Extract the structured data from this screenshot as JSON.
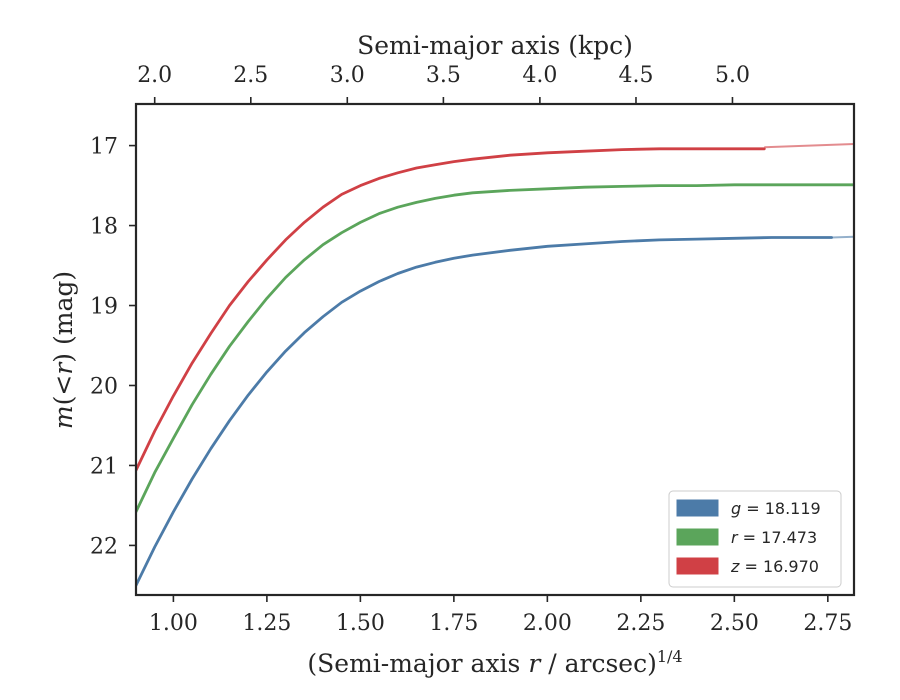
{
  "chart_data": {
    "type": "line",
    "xlabel_prefix": "(Semi-major axis ",
    "xlabel_var": "r",
    "xlabel_suffix": " / arcsec)",
    "xlabel_exp": "1/4",
    "ylabel_var": "m",
    "ylabel_mid": "(<",
    "ylabel_var2": "r",
    "ylabel_suffix": ") (mag)",
    "top_xlabel": "Semi-major axis (kpc)",
    "xlim": [
      0.9,
      2.82
    ],
    "ylim": [
      22.62,
      16.48
    ],
    "y_inverted": true,
    "x_ticks": [
      1.0,
      1.25,
      1.5,
      1.75,
      2.0,
      2.25,
      2.5,
      2.75
    ],
    "x_tick_labels": [
      "1.00",
      "1.25",
      "1.50",
      "1.75",
      "2.00",
      "2.25",
      "2.50",
      "2.75"
    ],
    "y_ticks": [
      17,
      18,
      19,
      20,
      21,
      22
    ],
    "y_tick_labels": [
      "17",
      "18",
      "19",
      "20",
      "21",
      "22"
    ],
    "top_ticks_kpc": [
      2.0,
      2.5,
      3.0,
      3.5,
      4.0,
      4.5,
      5.0
    ],
    "top_tick_labels": [
      "2.0",
      "2.5",
      "3.0",
      "3.5",
      "4.0",
      "4.5",
      "5.0"
    ],
    "top_tick_positions_x": [
      0.95,
      1.207,
      1.465,
      1.722,
      1.98,
      2.237,
      2.495
    ],
    "legend_position": "lower right",
    "series": [
      {
        "band": "g",
        "label_value": "18.119",
        "color": "#4c7ba8",
        "x": [
          0.9,
          0.95,
          1.0,
          1.05,
          1.1,
          1.15,
          1.2,
          1.25,
          1.3,
          1.35,
          1.4,
          1.45,
          1.5,
          1.55,
          1.6,
          1.65,
          1.7,
          1.75,
          1.8,
          1.9,
          2.0,
          2.1,
          2.2,
          2.3,
          2.4,
          2.5,
          2.6,
          2.7,
          2.76
        ],
        "y": [
          22.5,
          22.02,
          21.58,
          21.17,
          20.79,
          20.44,
          20.12,
          19.83,
          19.57,
          19.34,
          19.14,
          18.96,
          18.82,
          18.7,
          18.6,
          18.52,
          18.46,
          18.41,
          18.37,
          18.31,
          18.26,
          18.23,
          18.2,
          18.18,
          18.17,
          18.16,
          18.15,
          18.15,
          18.15
        ],
        "outer_x": [
          2.76,
          2.82
        ],
        "outer_y": [
          18.15,
          18.14
        ]
      },
      {
        "band": "r",
        "label_value": "17.473",
        "color": "#5ba55b",
        "x": [
          0.9,
          0.95,
          1.0,
          1.05,
          1.1,
          1.15,
          1.2,
          1.25,
          1.3,
          1.35,
          1.4,
          1.45,
          1.5,
          1.55,
          1.6,
          1.65,
          1.7,
          1.75,
          1.8,
          1.9,
          2.0,
          2.1,
          2.2,
          2.3,
          2.4,
          2.5,
          2.6,
          2.7,
          2.82
        ],
        "y": [
          21.58,
          21.09,
          20.66,
          20.24,
          19.86,
          19.51,
          19.2,
          18.91,
          18.65,
          18.43,
          18.24,
          18.09,
          17.96,
          17.85,
          17.77,
          17.71,
          17.66,
          17.62,
          17.59,
          17.56,
          17.54,
          17.52,
          17.51,
          17.5,
          17.5,
          17.49,
          17.49,
          17.49,
          17.49
        ],
        "outer_x": [],
        "outer_y": []
      },
      {
        "band": "z",
        "label_value": "16.970",
        "color": "#d04045",
        "x": [
          0.9,
          0.95,
          1.0,
          1.05,
          1.1,
          1.15,
          1.2,
          1.25,
          1.3,
          1.35,
          1.4,
          1.45,
          1.5,
          1.55,
          1.6,
          1.65,
          1.7,
          1.75,
          1.8,
          1.9,
          2.0,
          2.1,
          2.2,
          2.3,
          2.4,
          2.5,
          2.58
        ],
        "y": [
          21.06,
          20.57,
          20.13,
          19.72,
          19.35,
          19.0,
          18.7,
          18.43,
          18.18,
          17.96,
          17.77,
          17.61,
          17.5,
          17.41,
          17.34,
          17.28,
          17.24,
          17.2,
          17.17,
          17.12,
          17.09,
          17.07,
          17.05,
          17.04,
          17.04,
          17.04,
          17.04
        ],
        "outer_x": [
          2.58,
          2.82
        ],
        "outer_y": [
          17.02,
          16.98
        ]
      }
    ]
  }
}
